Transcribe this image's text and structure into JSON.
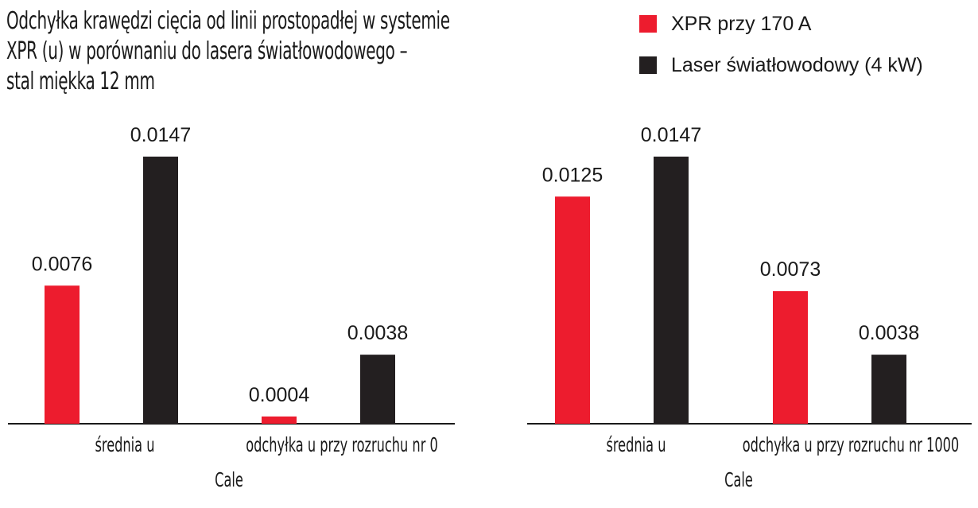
{
  "title": "Odchyłka krawędzi cięcia od linii prostopadłej w systemie XPR (u) w porównaniu do lasera światłowodowego – stal miękka 12 mm",
  "title_lines": [
    "Odchyłka krawędzi cięcia od linii prostopadłej w systemie",
    "XPR (u) w porównaniu do lasera światłowodowego –",
    "stal miękka 12 mm"
  ],
  "legend": [
    {
      "label": "XPR przy 170 A",
      "color": "#ed1c2e"
    },
    {
      "label": "Laser światłowodowy (4 kW)",
      "color": "#231f20"
    }
  ],
  "chart_data": [
    {
      "type": "bar",
      "categories": [
        "średnia u",
        "odchyłka u przy rozruchu nr 0"
      ],
      "xlabel": "Cale",
      "ylim": [
        0,
        0.0169
      ],
      "grid": false,
      "series": [
        {
          "name": "XPR przy 170 A",
          "color": "#ed1c2e",
          "values": [
            0.0076,
            0.0004
          ]
        },
        {
          "name": "Laser światłowodowy (4 kW)",
          "color": "#231f20",
          "values": [
            0.0147,
            0.0038
          ]
        }
      ],
      "data_labels": [
        [
          "0.0076",
          "0.0004"
        ],
        [
          "0.0147",
          "0.0038"
        ]
      ]
    },
    {
      "type": "bar",
      "categories": [
        "średnia u",
        "odchyłka u przy rozruchu nr 1000"
      ],
      "xlabel": "Cale",
      "ylim": [
        0,
        0.0169
      ],
      "grid": false,
      "series": [
        {
          "name": "XPR przy 170 A",
          "color": "#ed1c2e",
          "values": [
            0.0125,
            0.0073
          ]
        },
        {
          "name": "Laser światłowodowy (4 kW)",
          "color": "#231f20",
          "values": [
            0.0147,
            0.0038
          ]
        }
      ],
      "data_labels": [
        [
          "0.0125",
          "0.0073"
        ],
        [
          "0.0147",
          "0.0038"
        ]
      ]
    }
  ]
}
